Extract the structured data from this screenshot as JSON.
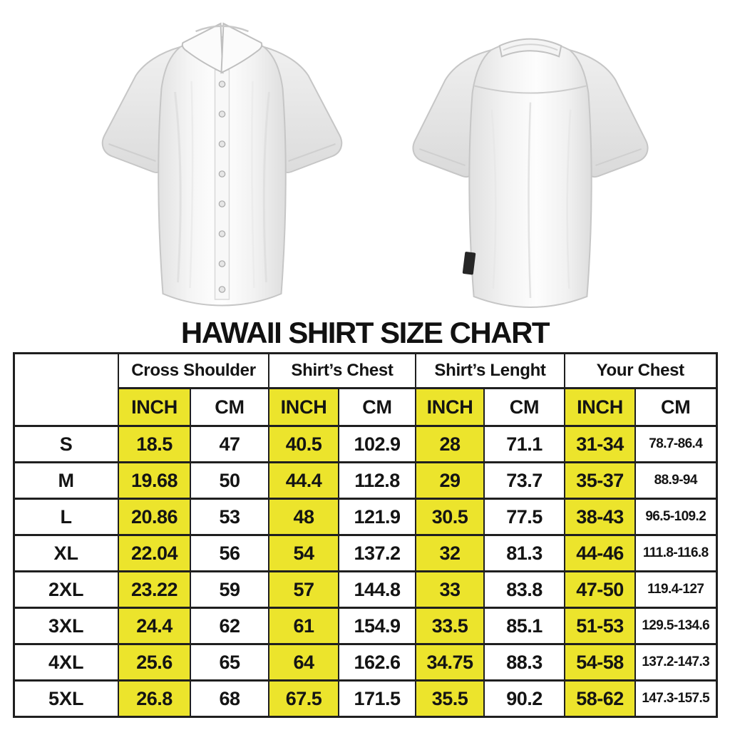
{
  "title": "HAWAII SHIRT SIZE CHART",
  "colors": {
    "highlight_yellow": "#ece42c",
    "table_border": "#1f1f1f",
    "text": "#141414"
  },
  "images": {
    "front_shirt": "white short-sleeve button-up shirt, front view",
    "back_shirt": "white short-sleeve button-up shirt, back view"
  },
  "chart_data": {
    "type": "table",
    "title": "HAWAII SHIRT SIZE CHART",
    "column_groups": [
      "Cross Shoulder",
      "Shirt’s Chest",
      "Shirt’s Lenght",
      "Your Chest"
    ],
    "unit_row": [
      "INCH",
      "CM",
      "INCH",
      "CM",
      "INCH",
      "CM",
      "INCH",
      "CM"
    ],
    "highlighted_unit": "INCH",
    "rows": [
      {
        "size": "S",
        "values": [
          "18.5",
          "47",
          "40.5",
          "102.9",
          "28",
          "71.1",
          "31-34",
          "78.7-86.4"
        ]
      },
      {
        "size": "M",
        "values": [
          "19.68",
          "50",
          "44.4",
          "112.8",
          "29",
          "73.7",
          "35-37",
          "88.9-94"
        ]
      },
      {
        "size": "L",
        "values": [
          "20.86",
          "53",
          "48",
          "121.9",
          "30.5",
          "77.5",
          "38-43",
          "96.5-109.2"
        ]
      },
      {
        "size": "XL",
        "values": [
          "22.04",
          "56",
          "54",
          "137.2",
          "32",
          "81.3",
          "44-46",
          "111.8-116.8"
        ]
      },
      {
        "size": "2XL",
        "values": [
          "23.22",
          "59",
          "57",
          "144.8",
          "33",
          "83.8",
          "47-50",
          "119.4-127"
        ]
      },
      {
        "size": "3XL",
        "values": [
          "24.4",
          "62",
          "61",
          "154.9",
          "33.5",
          "85.1",
          "51-53",
          "129.5-134.6"
        ]
      },
      {
        "size": "4XL",
        "values": [
          "25.6",
          "65",
          "64",
          "162.6",
          "34.75",
          "88.3",
          "54-58",
          "137.2-147.3"
        ]
      },
      {
        "size": "5XL",
        "values": [
          "26.8",
          "68",
          "67.5",
          "171.5",
          "35.5",
          "90.2",
          "58-62",
          "147.3-157.5"
        ]
      }
    ]
  }
}
